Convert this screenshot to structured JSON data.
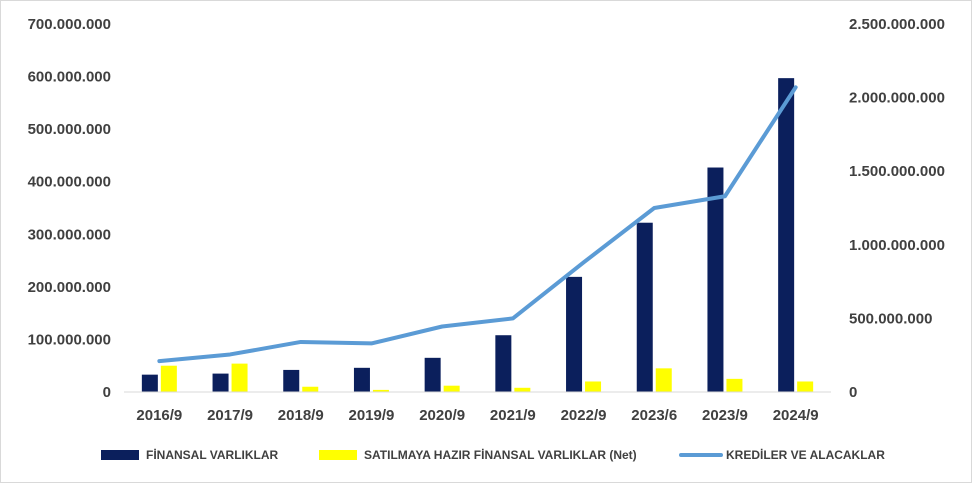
{
  "chart_data": {
    "type": "bar",
    "categories": [
      "2016/9",
      "2017/9",
      "2018/9",
      "2019/9",
      "2020/9",
      "2021/9",
      "2022/9",
      "2023/6",
      "2023/9",
      "2024/9"
    ],
    "series": [
      {
        "name": "FİNANSAL VARLIKLAR",
        "type": "bar",
        "axis": "left",
        "color": "#0b1f5c",
        "values": [
          33000000,
          35000000,
          42000000,
          46000000,
          65000000,
          108000000,
          219000000,
          322000000,
          427000000,
          597000000
        ]
      },
      {
        "name": "SATILMAYA HAZIR FİNANSAL VARLIKLAR (Net)",
        "type": "bar",
        "axis": "left",
        "color": "#ffff00",
        "values": [
          50000000,
          54000000,
          10000000,
          4000000,
          12000000,
          8000000,
          20000000,
          45000000,
          25000000,
          20000000
        ]
      },
      {
        "name": "KREDİLER VE ALACAKLAR",
        "type": "line",
        "axis": "right",
        "color": "#5b9bd5",
        "values": [
          210000000,
          255000000,
          340000000,
          330000000,
          445000000,
          500000000,
          880000000,
          1250000000,
          1330000000,
          2070000000
        ]
      }
    ],
    "y_left": {
      "min": 0,
      "max": 700000000,
      "ticks": [
        0,
        100000000,
        200000000,
        300000000,
        400000000,
        500000000,
        600000000,
        700000000
      ],
      "tick_labels": [
        "0",
        "100.000.000",
        "200.000.000",
        "300.000.000",
        "400.000.000",
        "500.000.000",
        "600.000.000",
        "700.000.000"
      ]
    },
    "y_right": {
      "min": 0,
      "max": 2500000000,
      "ticks": [
        0,
        500000000,
        1000000000,
        1500000000,
        2000000000,
        2500000000
      ],
      "tick_labels": [
        "0",
        "500.000.000",
        "1.000.000.000",
        "1.500.000.000",
        "2.000.000.000",
        "2.500.000.000"
      ]
    },
    "grid": false,
    "legend": "bottom"
  }
}
